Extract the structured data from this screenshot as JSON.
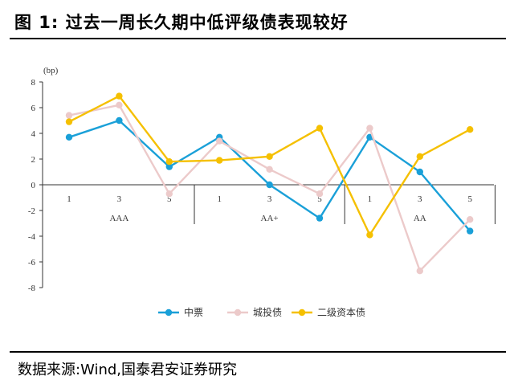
{
  "title": "图 1:  过去一周长久期中低评级债表现较好",
  "source": "数据来源:Wind,国泰君安证券研究",
  "chart_data": {
    "type": "line",
    "unit": "(bp)",
    "ylim": [
      -8,
      8
    ],
    "yticks": [
      8,
      6,
      4,
      2,
      0,
      -2,
      -4,
      -6,
      -8
    ],
    "x": [
      "1",
      "3",
      "5",
      "1",
      "3",
      "5",
      "1",
      "3",
      "5"
    ],
    "groups": [
      "AAA",
      "AA+",
      "AA"
    ],
    "series": [
      {
        "name": "中票",
        "color": "#1aa0d8",
        "values": [
          3.7,
          5.0,
          1.4,
          3.7,
          0.0,
          -2.6,
          3.7,
          1.0,
          -3.6
        ]
      },
      {
        "name": "城投债",
        "color": "#eccaca",
        "values": [
          5.4,
          6.2,
          -0.7,
          3.4,
          1.2,
          -0.7,
          4.4,
          -6.7,
          -2.7
        ]
      },
      {
        "name": "二级资本债",
        "color": "#f5c000",
        "values": [
          4.9,
          6.9,
          1.8,
          1.9,
          2.2,
          4.4,
          -3.9,
          2.2,
          4.3
        ]
      }
    ],
    "grid": false,
    "legend": "bottom"
  }
}
